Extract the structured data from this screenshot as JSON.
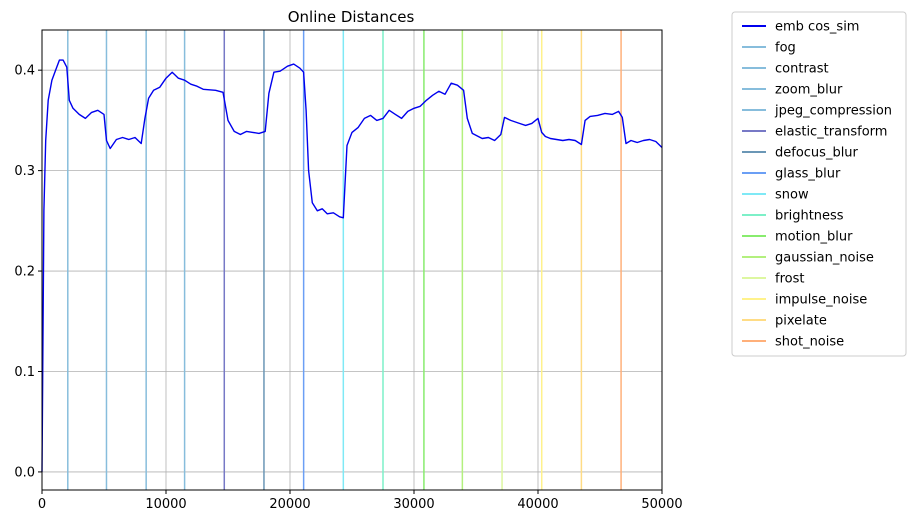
{
  "chart_data": {
    "type": "line",
    "title": "Online Distances",
    "xlabel": "",
    "ylabel": "",
    "xlim": [
      0,
      50000
    ],
    "ylim": [
      -0.018,
      0.44
    ],
    "xticks": [
      0,
      10000,
      20000,
      30000,
      40000,
      50000
    ],
    "xtick_labels": [
      "0",
      "10000",
      "20000",
      "30000",
      "40000",
      "50000"
    ],
    "yticks": [
      0.0,
      0.1,
      0.2,
      0.3,
      0.4
    ],
    "ytick_labels": [
      "0.0",
      "0.1",
      "0.2",
      "0.3",
      "0.4"
    ],
    "grid": true,
    "legend_position": "outside-right",
    "series": [
      {
        "name": "emb cos_sim",
        "color": "#0000ee",
        "x": [
          0,
          150,
          300,
          500,
          800,
          1100,
          1400,
          1700,
          2000,
          2200,
          2500,
          3000,
          3500,
          4000,
          4500,
          5000,
          5200,
          5500,
          6000,
          6500,
          7000,
          7500,
          8000,
          8300,
          8600,
          9000,
          9500,
          10000,
          10500,
          11000,
          11500,
          12000,
          12500,
          13000,
          14000,
          14600,
          15000,
          15500,
          16000,
          16500,
          17000,
          17500,
          18000,
          18300,
          18700,
          19200,
          19800,
          20300,
          20800,
          21100,
          21300,
          21500,
          21800,
          22200,
          22600,
          23000,
          23500,
          24000,
          24300,
          24600,
          25000,
          25500,
          26000,
          26500,
          27000,
          27500,
          28000,
          28500,
          29000,
          29500,
          30000,
          30500,
          31000,
          31500,
          32000,
          32500,
          33000,
          33500,
          34000,
          34300,
          34700,
          35500,
          36000,
          36500,
          37000,
          37300,
          37800,
          38500,
          39000,
          39500,
          40000,
          40300,
          40600,
          41000,
          41500,
          42000,
          42500,
          43000,
          43500,
          43800,
          44200,
          44800,
          45400,
          46000,
          46500,
          46800,
          47100,
          47500,
          48000,
          48500,
          49000,
          49500,
          50000
        ],
        "y": [
          0.0,
          0.26,
          0.33,
          0.37,
          0.39,
          0.4,
          0.41,
          0.41,
          0.403,
          0.37,
          0.362,
          0.356,
          0.352,
          0.358,
          0.36,
          0.356,
          0.33,
          0.322,
          0.331,
          0.333,
          0.331,
          0.333,
          0.327,
          0.352,
          0.372,
          0.38,
          0.383,
          0.392,
          0.398,
          0.392,
          0.39,
          0.386,
          0.384,
          0.381,
          0.38,
          0.378,
          0.35,
          0.339,
          0.336,
          0.339,
          0.338,
          0.337,
          0.339,
          0.377,
          0.398,
          0.399,
          0.404,
          0.406,
          0.402,
          0.398,
          0.36,
          0.3,
          0.268,
          0.26,
          0.262,
          0.257,
          0.258,
          0.254,
          0.253,
          0.325,
          0.338,
          0.343,
          0.352,
          0.355,
          0.35,
          0.352,
          0.36,
          0.356,
          0.352,
          0.359,
          0.362,
          0.364,
          0.37,
          0.375,
          0.379,
          0.376,
          0.387,
          0.385,
          0.38,
          0.352,
          0.337,
          0.332,
          0.333,
          0.33,
          0.336,
          0.353,
          0.35,
          0.347,
          0.345,
          0.347,
          0.352,
          0.338,
          0.334,
          0.332,
          0.331,
          0.33,
          0.331,
          0.33,
          0.326,
          0.35,
          0.354,
          0.355,
          0.357,
          0.356,
          0.359,
          0.353,
          0.327,
          0.33,
          0.328,
          0.33,
          0.331,
          0.329,
          0.323
        ]
      },
      {
        "name": "fog",
        "color": "#87bddc",
        "vline": 2080
      },
      {
        "name": "contrast",
        "color": "#87bddc",
        "vline": 5200
      },
      {
        "name": "zoom_blur",
        "color": "#87bddc",
        "vline": 8400
      },
      {
        "name": "jpeg_compression",
        "color": "#87bddc",
        "vline": 11500
      },
      {
        "name": "elastic_transform",
        "color": "#7779c6",
        "vline": 14700
      },
      {
        "name": "defocus_blur",
        "color": "#6b97b6",
        "vline": 17900
      },
      {
        "name": "glass_blur",
        "color": "#6b9ff5",
        "vline": 21100
      },
      {
        "name": "snow",
        "color": "#7fe9f6",
        "vline": 24300
      },
      {
        "name": "brightness",
        "color": "#7df0c8",
        "vline": 27500
      },
      {
        "name": "motion_blur",
        "color": "#88ec6e",
        "vline": 30800
      },
      {
        "name": "gaussian_noise",
        "color": "#b3f07e",
        "vline": 33900
      },
      {
        "name": "frost",
        "color": "#ddf7a0",
        "vline": 37100
      },
      {
        "name": "impulse_noise",
        "color": "#fff28b",
        "vline": 40300
      },
      {
        "name": "pixelate",
        "color": "#ffdc85",
        "vline": 43500
      },
      {
        "name": "shot_noise",
        "color": "#ffb07a",
        "vline": 46700
      }
    ]
  }
}
